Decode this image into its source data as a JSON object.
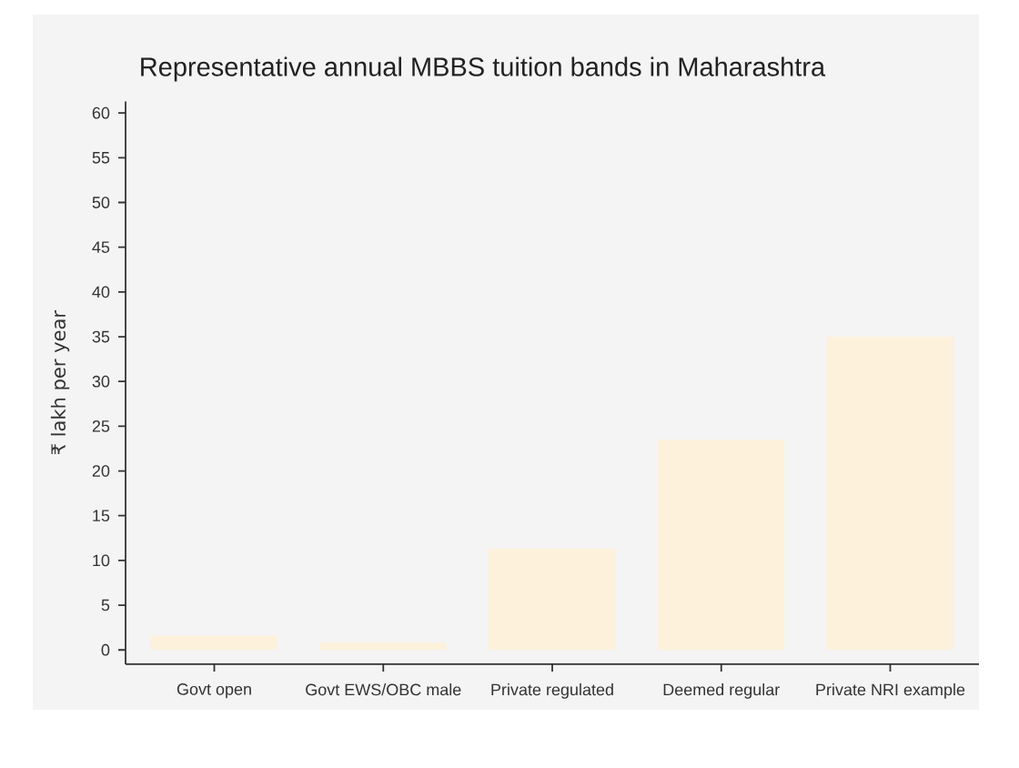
{
  "chart_data": {
    "type": "bar",
    "title": "Representative annual MBBS tuition bands in Maharashtra",
    "ylabel": "₹ lakh per year",
    "categories": [
      "Govt open",
      "Govt EWS/OBC male",
      "Private regulated",
      "Deemed regular",
      "Private NRI example"
    ],
    "values": [
      1.6,
      0.8,
      11.3,
      23.5,
      35
    ],
    "color": "#fdf1dc",
    "ylim": [
      -1.6,
      61.3
    ],
    "yticks": [
      0,
      5,
      10,
      15,
      20,
      25,
      30,
      35,
      40,
      45,
      50,
      55,
      60
    ]
  }
}
